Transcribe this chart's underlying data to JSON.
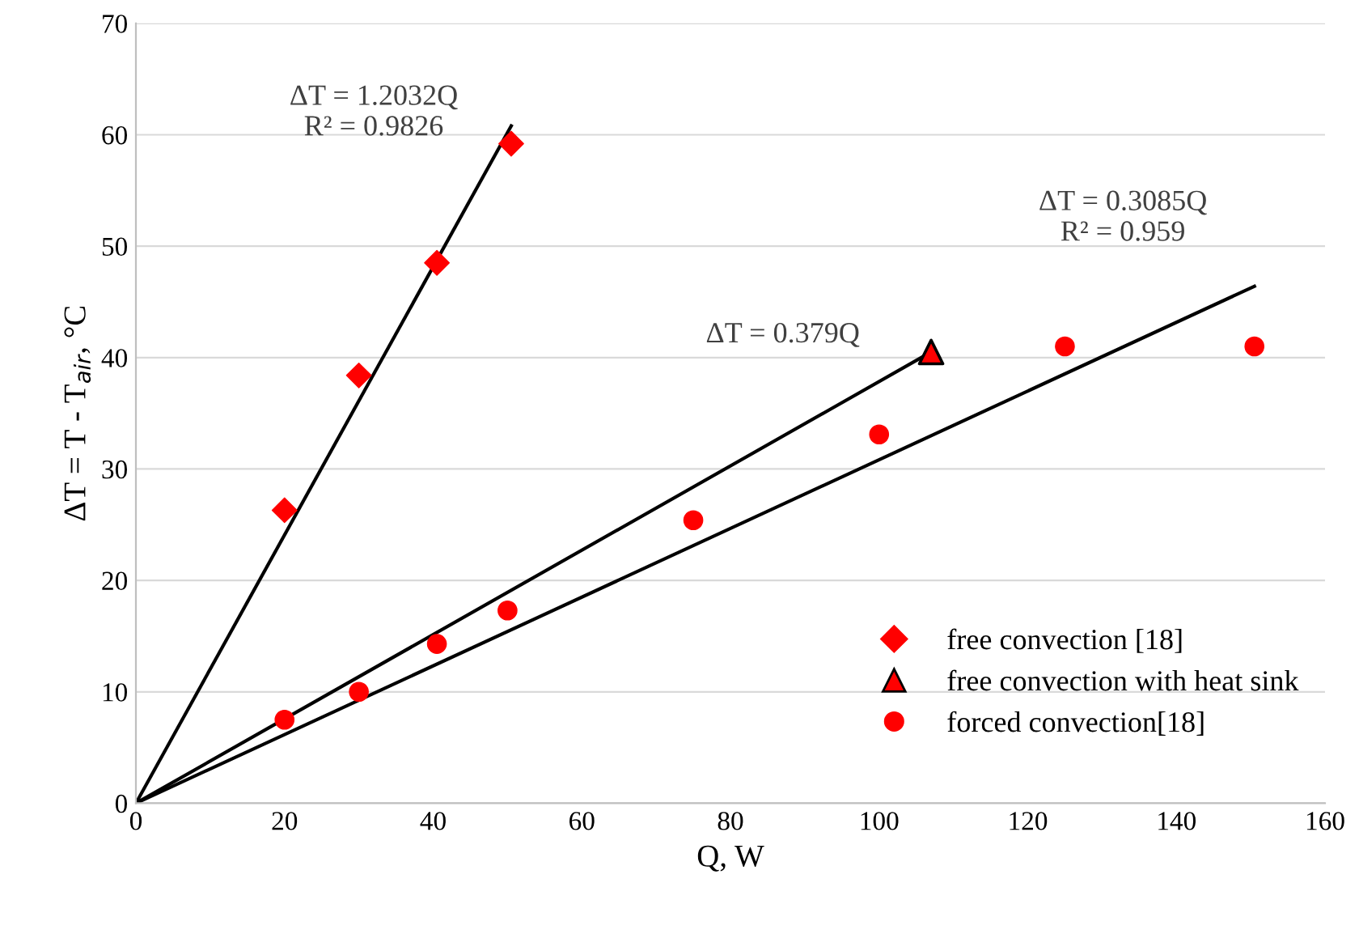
{
  "chart_data": {
    "type": "scatter",
    "xlabel": "Q, W",
    "ylabel": "ΔT = T - T$_{air}$, °C",
    "xlim": [
      0,
      160
    ],
    "xticks": [
      0,
      20,
      40,
      60,
      80,
      100,
      120,
      140,
      160
    ],
    "ylim": [
      0,
      70
    ],
    "yticks": [
      0,
      10,
      20,
      30,
      40,
      50,
      60,
      70
    ],
    "grid": "y",
    "legend": "bottom right",
    "series": [
      {
        "type": "line",
        "color": "#000000",
        "x": [
          0,
          50.5
        ],
        "values": [
          0,
          60.8
        ]
      },
      {
        "type": "line",
        "color": "#000000",
        "x": [
          0,
          107
        ],
        "values": [
          0,
          40.5
        ]
      },
      {
        "type": "line",
        "color": "#000000",
        "x": [
          0,
          150.5
        ],
        "values": [
          0,
          46.4
        ]
      },
      {
        "name": "free convection [18]",
        "marker": "diamond",
        "color": "#ff0000",
        "x": [
          20,
          30,
          40.5,
          50.5
        ],
        "values": [
          26.3,
          38.4,
          48.5,
          59.2
        ]
      },
      {
        "name": "free convection with heat sink",
        "marker": "triangle",
        "color": "#ff0000",
        "x": [
          107
        ],
        "values": [
          40.5
        ]
      },
      {
        "name": "forced convection[18]",
        "marker": "circle",
        "color": "#ff0000",
        "x": [
          20,
          30,
          40.5,
          50,
          75,
          100,
          125,
          150.5
        ],
        "values": [
          7.5,
          10,
          14.3,
          17.3,
          25.4,
          33.1,
          41,
          41
        ]
      }
    ],
    "annotations": [
      "ΔT = 1.2032Q\nR² = 0.9826",
      "ΔT = 0.379Q",
      "ΔT = 0.3085Q\nR² = 0.959"
    ]
  }
}
